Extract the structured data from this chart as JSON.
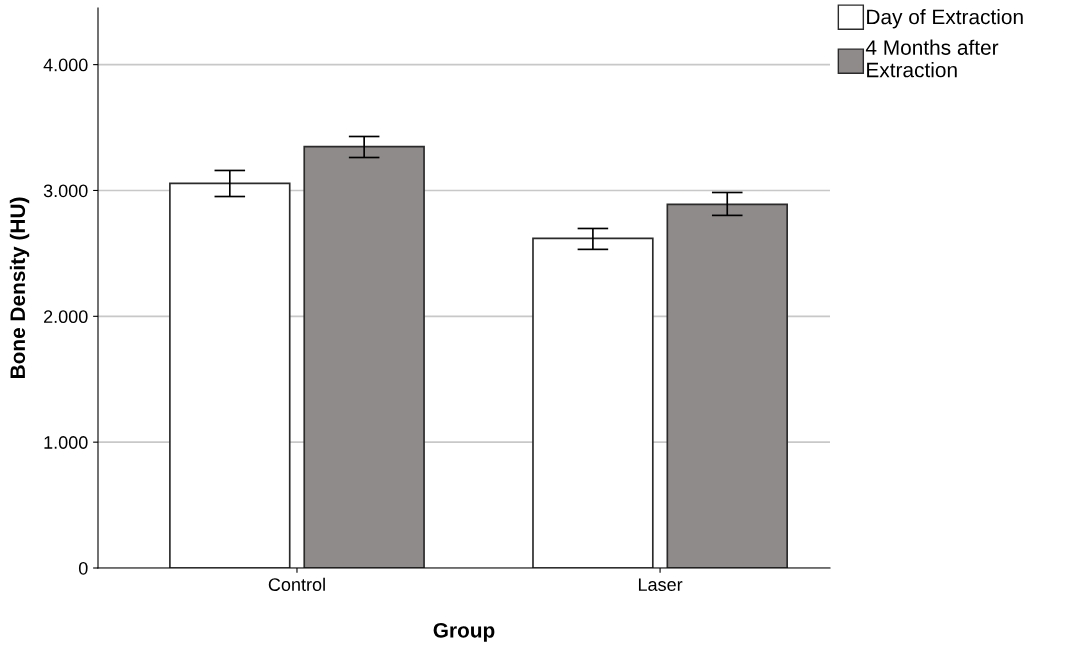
{
  "chart_data": {
    "type": "bar",
    "xlabel": "Group",
    "ylabel": "Bone Density (HU)",
    "categories": [
      "Control",
      "Laser"
    ],
    "series": [
      {
        "name": "Day of Extraction",
        "color": "#ffffff",
        "values": [
          3056,
          2619
        ],
        "errors": [
          [
            2952,
            3159
          ],
          [
            2532,
            2698
          ]
        ]
      },
      {
        "name": "4 Months after\nExtraction",
        "color": "#8f8b8a",
        "values": [
          3349,
          2889
        ],
        "errors": [
          [
            3262,
            3429
          ],
          [
            2802,
            2984
          ]
        ]
      }
    ],
    "ylim": [
      0,
      4450
    ],
    "yticks": [
      0,
      {
        "value": 1000,
        "label": "1.000"
      },
      {
        "value": 2000,
        "label": "2.000"
      },
      {
        "value": 3000,
        "label": "3.000"
      },
      {
        "value": 4000,
        "label": "4.000"
      }
    ],
    "grid": "y",
    "legend": "top right"
  }
}
